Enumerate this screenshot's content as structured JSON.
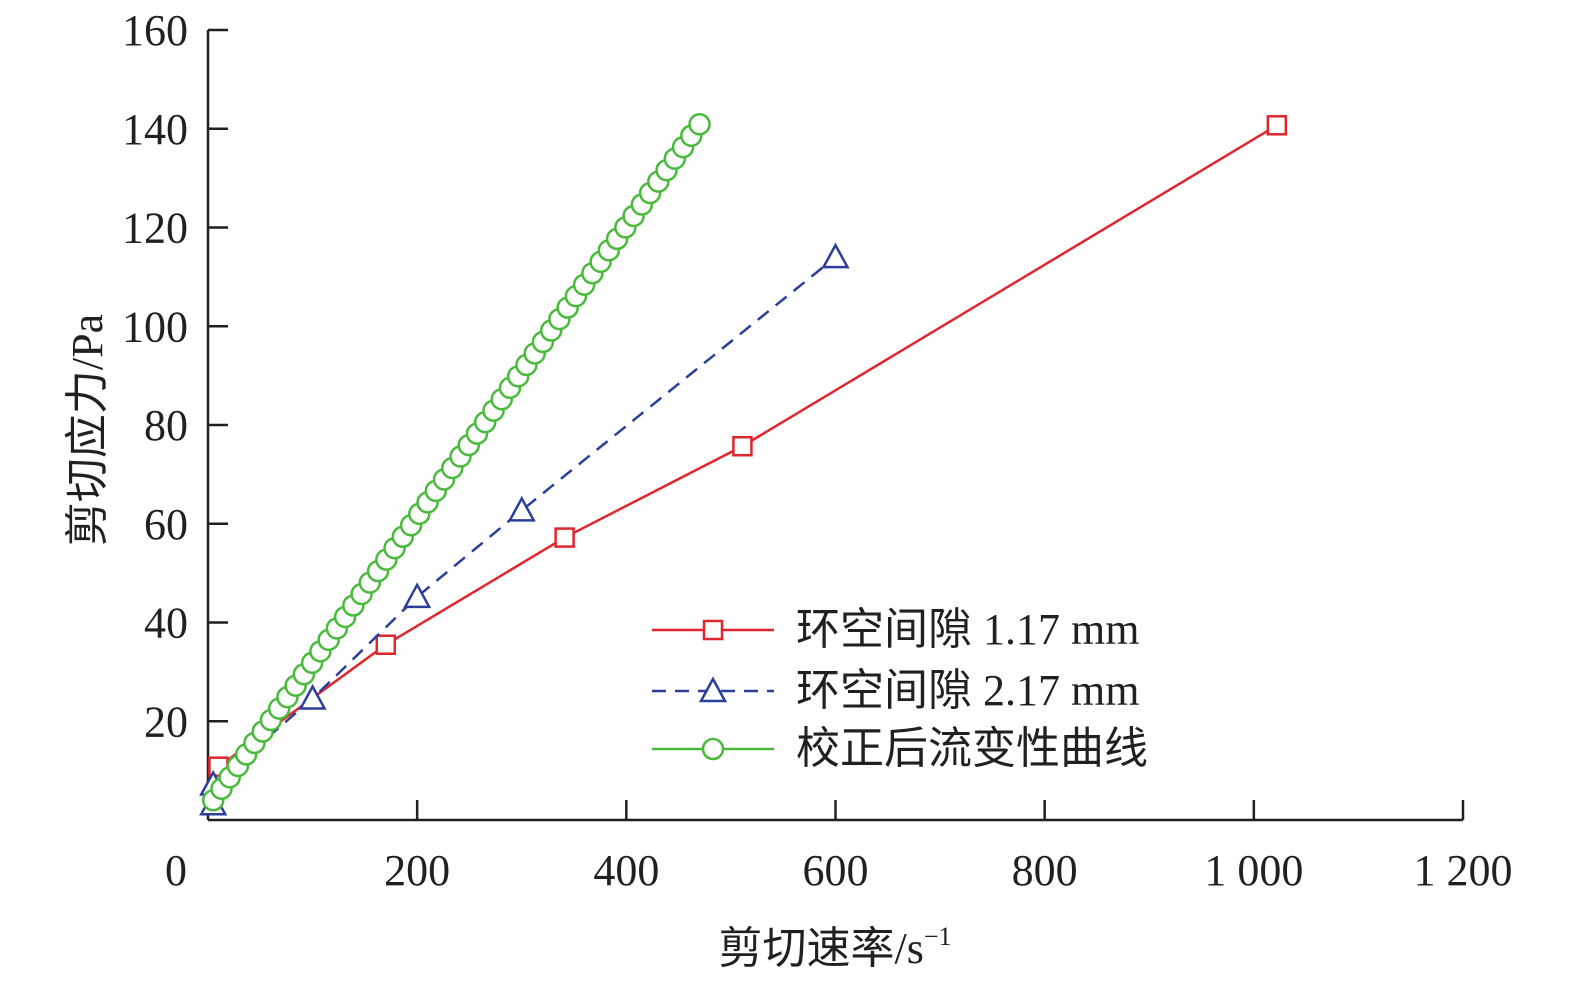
{
  "chart_data": {
    "type": "line",
    "xlabel": "剪切速率/s",
    "xlabel_sup": "−1",
    "ylabel": "剪切应力/Pa",
    "xlim": [
      0,
      1200
    ],
    "ylim": [
      0,
      160
    ],
    "x_ticks": [
      0,
      200,
      400,
      600,
      800,
      1000,
      1200
    ],
    "x_tick_labels": [
      "0",
      "200",
      "400",
      "600",
      "800",
      "1 000",
      "1 200"
    ],
    "y_ticks": [
      20,
      40,
      60,
      80,
      100,
      120,
      140,
      160
    ],
    "y_tick_labels": [
      "20",
      "40",
      "60",
      "80",
      "100",
      "120",
      "140",
      "160"
    ],
    "grid": false,
    "legend_position": "bottom-right",
    "series": [
      {
        "name": "环空间隙 1.17 mm",
        "color": "#e0262d",
        "marker": "square",
        "line_style": "solid",
        "points": [
          [
            10,
            10.8
          ],
          [
            170,
            35.5
          ],
          [
            341,
            57.2
          ],
          [
            511,
            75.7
          ],
          [
            1022,
            140.7
          ]
        ]
      },
      {
        "name": "环空间隙 2.17 mm",
        "color": "#2b3f98",
        "marker": "triangle",
        "line_style": "dashed",
        "points": [
          [
            5,
            3.2
          ],
          [
            5,
            7.2
          ],
          [
            100,
            24.6
          ],
          [
            200,
            45.2
          ],
          [
            300,
            62.7
          ],
          [
            600,
            114.0
          ]
        ]
      },
      {
        "name": "校正后流变性曲线",
        "color": "#4aba3c",
        "marker": "circle",
        "line_style": "solid",
        "x_start": 5,
        "x_end": 470,
        "y_start": 4.0,
        "y_end": 140.9,
        "n_points": 60
      }
    ]
  }
}
